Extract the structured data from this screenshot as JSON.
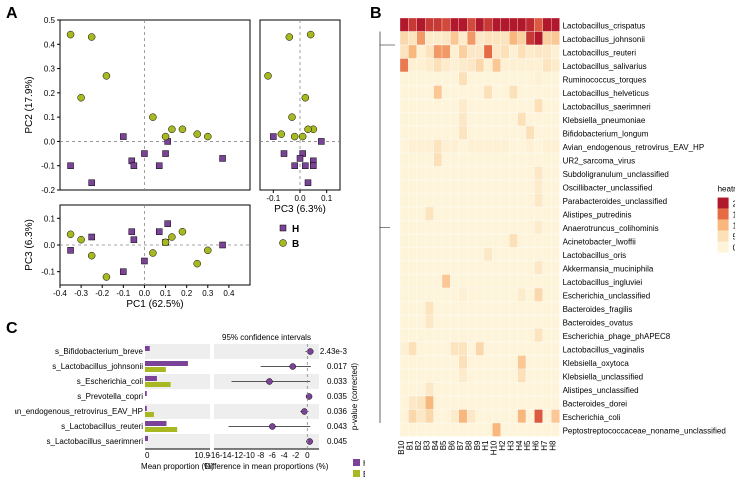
{
  "panelA": {
    "label": "A",
    "scatter_main": {
      "xlabel": "PC1 (62.5%)",
      "ylabel": "PC2 (17.9%)",
      "xlim": [
        -0.4,
        0.5
      ],
      "ylim": [
        -0.2,
        0.5
      ],
      "xticks": [
        -0.4,
        -0.3,
        -0.2,
        -0.1,
        0.0,
        0.1,
        0.2,
        0.3,
        0.4
      ],
      "yticks": [
        -0.2,
        -0.1,
        0.0,
        0.1,
        0.2,
        0.3,
        0.4,
        0.5
      ],
      "points_H": [
        [
          -0.35,
          -0.1
        ],
        [
          -0.25,
          -0.17
        ],
        [
          -0.1,
          0.02
        ],
        [
          -0.06,
          -0.08
        ],
        [
          -0.05,
          -0.1
        ],
        [
          0.0,
          -0.05
        ],
        [
          0.1,
          -0.05
        ],
        [
          0.11,
          0.0
        ],
        [
          0.07,
          -0.1
        ],
        [
          0.37,
          -0.07
        ]
      ],
      "points_B": [
        [
          -0.35,
          0.44
        ],
        [
          -0.25,
          0.43
        ],
        [
          -0.18,
          0.27
        ],
        [
          -0.3,
          0.18
        ],
        [
          0.1,
          0.02
        ],
        [
          0.04,
          0.1
        ],
        [
          0.18,
          0.05
        ],
        [
          0.25,
          0.03
        ],
        [
          0.13,
          0.05
        ],
        [
          0.3,
          0.02
        ]
      ]
    },
    "scatter_right": {
      "xlabel": "PC3 (6.3%)",
      "xlim": [
        -0.15,
        0.15
      ],
      "xticks": [
        -0.1,
        0.0,
        0.1
      ],
      "points_H": [
        [
          -0.02,
          -0.1
        ],
        [
          0.03,
          -0.17
        ],
        [
          -0.1,
          0.02
        ],
        [
          0.05,
          -0.08
        ],
        [
          0.02,
          -0.1
        ],
        [
          -0.06,
          -0.05
        ],
        [
          0.01,
          -0.05
        ],
        [
          0.08,
          0.0
        ],
        [
          0.05,
          -0.1
        ],
        [
          0.0,
          -0.07
        ]
      ],
      "points_B": [
        [
          0.04,
          0.44
        ],
        [
          -0.04,
          0.43
        ],
        [
          -0.12,
          0.27
        ],
        [
          0.02,
          0.18
        ],
        [
          0.01,
          0.02
        ],
        [
          -0.03,
          0.1
        ],
        [
          0.05,
          0.05
        ],
        [
          -0.07,
          0.03
        ],
        [
          0.03,
          0.05
        ],
        [
          -0.02,
          0.02
        ]
      ]
    },
    "scatter_bottom": {
      "ylabel": "PC3 (6.3%)",
      "ylim": [
        -0.15,
        0.15
      ],
      "yticks": [
        -0.1,
        0.0,
        0.1
      ],
      "points_H": [
        [
          -0.35,
          -0.02
        ],
        [
          -0.25,
          0.03
        ],
        [
          -0.1,
          -0.1
        ],
        [
          -0.06,
          0.05
        ],
        [
          -0.05,
          0.02
        ],
        [
          0.0,
          -0.06
        ],
        [
          0.1,
          0.01
        ],
        [
          0.11,
          0.08
        ],
        [
          0.07,
          0.05
        ],
        [
          0.37,
          0.0
        ]
      ],
      "points_B": [
        [
          -0.35,
          0.04
        ],
        [
          -0.25,
          -0.04
        ],
        [
          -0.18,
          -0.12
        ],
        [
          -0.3,
          0.02
        ],
        [
          0.1,
          0.01
        ],
        [
          0.04,
          -0.03
        ],
        [
          0.18,
          0.05
        ],
        [
          0.25,
          -0.07
        ],
        [
          0.13,
          0.03
        ],
        [
          0.3,
          -0.02
        ]
      ]
    },
    "legend": {
      "items": [
        {
          "label": "H",
          "color": "#7b4397",
          "shape": "square"
        },
        {
          "label": "B",
          "color": "#a8b820",
          "shape": "circle"
        }
      ]
    },
    "marker_colors": {
      "H": "#7b4397",
      "B": "#a8b820"
    },
    "marker_size": 5
  },
  "panelB": {
    "label": "B",
    "legend_title": "heatmap",
    "legend_values": [
      20,
      15,
      10,
      5,
      0
    ],
    "colorscale": [
      "#fdf4da",
      "#fce0b8",
      "#f8b77d",
      "#e66b45",
      "#b2182b"
    ],
    "species": [
      "Lactobacillus_crispatus",
      "Lactobacillus_johnsonii",
      "Lactobacillus_reuteri",
      "Lactobacillus_salivarius",
      "Ruminococcus_torques",
      "Lactobacillus_helveticus",
      "Lactobacillus_saerimneri",
      "Klebsiella_pneumoniae",
      "Bifidobacterium_longum",
      "Avian_endogenous_retrovirus_EAV_HP",
      "UR2_sarcoma_virus",
      "Subdoligranulum_unclassified",
      "Oscillibacter_unclassified",
      "Parabacteroides_unclassified",
      "Alistipes_putredinis",
      "Anaerotruncus_colihominis",
      "Acinetobacter_lwoffii",
      "Lactobacillus_oris",
      "Akkermansia_muciniphila",
      "Lactobacillus_ingluviei",
      "Escherichia_unclassified",
      "Bacteroides_fragilis",
      "Bacteroides_ovatus",
      "Escherichia_phage_phAPEC8",
      "Lactobacillus_vaginalis",
      "Klebsiella_oxytoca",
      "Klebsiella_unclassified",
      "Alistipes_unclassified",
      "Bacteroides_dorei",
      "Escherichia_coli",
      "Peptostreptococcaceae_noname_unclassified"
    ],
    "samples": [
      "B10",
      "B1",
      "B2",
      "B3",
      "B4",
      "B5",
      "B6",
      "B7",
      "B8",
      "B9",
      "H1",
      "H10",
      "H2",
      "H3",
      "H4",
      "H5",
      "H6",
      "H7",
      "H8"
    ],
    "values": [
      [
        20,
        18,
        20,
        18,
        18,
        17,
        20,
        20,
        17,
        20,
        18,
        20,
        20,
        20,
        20,
        19,
        16,
        20,
        20
      ],
      [
        6,
        4,
        12,
        2,
        2,
        3,
        8,
        2,
        12,
        3,
        4,
        4,
        4,
        10,
        7,
        18,
        20,
        7,
        8
      ],
      [
        4,
        10,
        1,
        4,
        12,
        12,
        1,
        7,
        3,
        3,
        15,
        3,
        5,
        1,
        5,
        2,
        3,
        3,
        1
      ],
      [
        14,
        1,
        1,
        2,
        5,
        2,
        1,
        2,
        3,
        6,
        1,
        8,
        1,
        1,
        1,
        1,
        1,
        4,
        2
      ],
      [
        0,
        0,
        0,
        0,
        0,
        0,
        0,
        5,
        0,
        0,
        0,
        0,
        0,
        0,
        0,
        0,
        1,
        0,
        0
      ],
      [
        0,
        0,
        0,
        0,
        8,
        0,
        0,
        0,
        0,
        0,
        5,
        0,
        0,
        5,
        0,
        0,
        0,
        0,
        0
      ],
      [
        0,
        0,
        0,
        0,
        0,
        0,
        0,
        2,
        0,
        0,
        0,
        0,
        0,
        0,
        0,
        0,
        5,
        0,
        0
      ],
      [
        0,
        0,
        0,
        0,
        0,
        0,
        0,
        3,
        0,
        0,
        0,
        0,
        0,
        0,
        5,
        0,
        0,
        0,
        0
      ],
      [
        0,
        0,
        0,
        0,
        0,
        0,
        0,
        4,
        0,
        0,
        0,
        0,
        0,
        0,
        0,
        5,
        0,
        0,
        0
      ],
      [
        0,
        1,
        1,
        1,
        4,
        1,
        1,
        0,
        1,
        1,
        1,
        1,
        1,
        0,
        0,
        1,
        0,
        1,
        1
      ],
      [
        0,
        0,
        0,
        0,
        5,
        0,
        0,
        0,
        0,
        0,
        0,
        0,
        0,
        0,
        0,
        0,
        0,
        0,
        0
      ],
      [
        0,
        0,
        0,
        0,
        0,
        0,
        0,
        0,
        0,
        0,
        0,
        0,
        0,
        0,
        0,
        0,
        3,
        0,
        0
      ],
      [
        0,
        0,
        0,
        0,
        0,
        0,
        0,
        0,
        0,
        0,
        0,
        0,
        0,
        0,
        0,
        0,
        2,
        0,
        0
      ],
      [
        0,
        0,
        0,
        0,
        0,
        0,
        0,
        0,
        0,
        0,
        0,
        0,
        0,
        0,
        0,
        0,
        3,
        0,
        0
      ],
      [
        0,
        0,
        0,
        4,
        0,
        0,
        0,
        0,
        0,
        0,
        0,
        0,
        0,
        0,
        0,
        0,
        0,
        0,
        0
      ],
      [
        0,
        0,
        0,
        0,
        0,
        0,
        0,
        0,
        0,
        0,
        0,
        0,
        0,
        0,
        0,
        0,
        2,
        0,
        0
      ],
      [
        0,
        0,
        0,
        0,
        0,
        0,
        0,
        0,
        0,
        0,
        0,
        0,
        0,
        5,
        0,
        0,
        0,
        0,
        0
      ],
      [
        0,
        0,
        0,
        0,
        0,
        0,
        0,
        0,
        0,
        0,
        3,
        0,
        0,
        0,
        0,
        0,
        0,
        0,
        0
      ],
      [
        0,
        0,
        0,
        0,
        0,
        0,
        0,
        0,
        0,
        0,
        0,
        0,
        0,
        0,
        0,
        0,
        3,
        0,
        0
      ],
      [
        0,
        0,
        0,
        0,
        0,
        8,
        0,
        0,
        0,
        0,
        0,
        0,
        0,
        0,
        0,
        0,
        0,
        0,
        0
      ],
      [
        0,
        0,
        0,
        0,
        0,
        0,
        0,
        1,
        0,
        0,
        0,
        0,
        0,
        0,
        2,
        0,
        6,
        0,
        0
      ],
      [
        0,
        0,
        0,
        4,
        0,
        0,
        0,
        0,
        0,
        0,
        0,
        0,
        0,
        0,
        0,
        0,
        0,
        0,
        0
      ],
      [
        0,
        0,
        0,
        3,
        0,
        0,
        0,
        0,
        0,
        0,
        0,
        0,
        0,
        0,
        0,
        0,
        0,
        0,
        0
      ],
      [
        0,
        0,
        0,
        0,
        0,
        0,
        0,
        0,
        0,
        0,
        0,
        0,
        0,
        0,
        0,
        0,
        4,
        0,
        0
      ],
      [
        1,
        5,
        0,
        0,
        0,
        0,
        4,
        4,
        0,
        6,
        0,
        0,
        0,
        0,
        0,
        0,
        0,
        0,
        0
      ],
      [
        0,
        0,
        0,
        0,
        0,
        0,
        0,
        5,
        0,
        0,
        0,
        0,
        0,
        0,
        8,
        0,
        0,
        0,
        0
      ],
      [
        0,
        0,
        0,
        0,
        0,
        0,
        0,
        2,
        0,
        0,
        0,
        0,
        0,
        0,
        5,
        0,
        0,
        0,
        0
      ],
      [
        0,
        0,
        0,
        3,
        0,
        0,
        0,
        0,
        0,
        0,
        0,
        0,
        0,
        0,
        0,
        0,
        0,
        0,
        0
      ],
      [
        0,
        3,
        4,
        10,
        0,
        0,
        0,
        0,
        0,
        0,
        0,
        0,
        0,
        0,
        0,
        0,
        0,
        0,
        0
      ],
      [
        0,
        6,
        3,
        6,
        0,
        0,
        2,
        10,
        3,
        0,
        0,
        0,
        0,
        0,
        10,
        0,
        16,
        0,
        8
      ],
      [
        0,
        0,
        0,
        0,
        0,
        0,
        0,
        0,
        0,
        0,
        0,
        10,
        0,
        0,
        0,
        0,
        0,
        0,
        0
      ]
    ]
  },
  "panelC": {
    "label": "C",
    "left_xlabel": "Mean proportion (%)",
    "right_xlabel": "Difference in mean proportions (%)",
    "ci_title": "95% confidence intervals",
    "pval_label": "p-value (corrected)",
    "left_xmax": 10.9,
    "right_xlim": [
      -16,
      2
    ],
    "right_xticks": [
      -16,
      -14,
      -12,
      -10,
      -8,
      -6,
      -4,
      -2,
      0
    ],
    "rows": [
      {
        "label": "s_Bifidobacterium_breve",
        "H": 0.8,
        "B": 0.0,
        "diff": 0.5,
        "lo": -0.3,
        "hi": 0.9,
        "p": "2.43e-3"
      },
      {
        "label": "s_Lactobacillus_johnsonii",
        "H": 7.2,
        "B": 3.5,
        "diff": -2.5,
        "lo": -8.0,
        "hi": 0.6,
        "p": "0.017"
      },
      {
        "label": "s_Escherichia_coli",
        "H": 2.0,
        "B": 4.3,
        "diff": -6.5,
        "lo": -13.0,
        "hi": 0.5,
        "p": "0.033"
      },
      {
        "label": "s_Prevotella_copri",
        "H": 0.3,
        "B": 0.0,
        "diff": 0.3,
        "lo": -0.2,
        "hi": 0.6,
        "p": "0.035"
      },
      {
        "label": "s_Avian_endogenous_retrovirus_EAV_HP",
        "H": 0.3,
        "B": 1.5,
        "diff": -0.5,
        "lo": -1.2,
        "hi": 0.2,
        "p": "0.036"
      },
      {
        "label": "s_Lactobacillus_reuteri",
        "H": 3.6,
        "B": 5.4,
        "diff": -6.0,
        "lo": -13.5,
        "hi": 0.5,
        "p": "0.043"
      },
      {
        "label": "s_Lactobacillus_saerimneri",
        "H": 0.5,
        "B": 0.0,
        "diff": 0.4,
        "lo": -0.2,
        "hi": 0.7,
        "p": "0.045"
      }
    ],
    "colors": {
      "H": "#7b4397",
      "B": "#a8b820",
      "marker_fill": "#7b4397",
      "marker_stroke": "#000"
    },
    "legend": {
      "items": [
        {
          "label": "H",
          "color": "#7b4397"
        },
        {
          "label": "B",
          "color": "#a8b820"
        }
      ]
    }
  }
}
